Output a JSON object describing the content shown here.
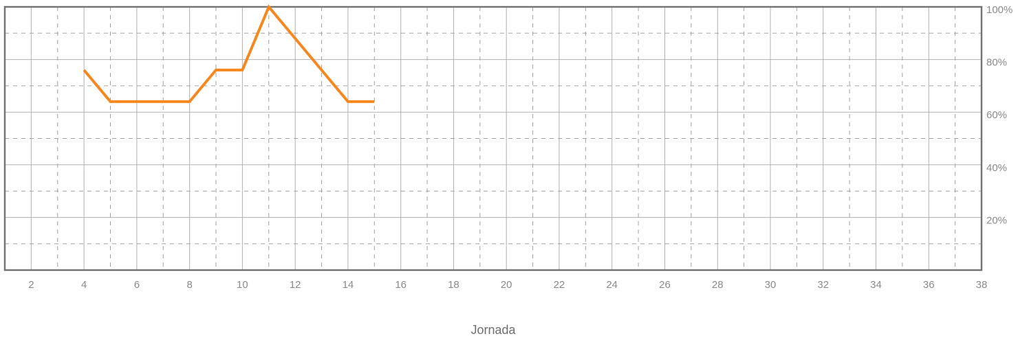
{
  "chart_data": {
    "type": "line",
    "xlabel": "Jornada",
    "ylabel": "",
    "xlim": [
      1,
      38
    ],
    "ylim": [
      0,
      100
    ],
    "x_ticks": [
      2,
      4,
      6,
      8,
      10,
      12,
      14,
      16,
      18,
      20,
      22,
      24,
      26,
      28,
      30,
      32,
      34,
      36,
      38
    ],
    "y_ticks": [
      20,
      40,
      60,
      80,
      100
    ],
    "y_tick_labels": [
      "20%",
      "40%",
      "60%",
      "80%",
      "100%"
    ],
    "y_axis_position": "right",
    "grid": true,
    "series": [
      {
        "color": "#f7881f",
        "x": [
          4,
          5,
          6,
          7,
          8,
          9,
          10,
          11,
          12,
          13,
          14,
          15
        ],
        "values": [
          76,
          64,
          64,
          64,
          64,
          76,
          76,
          100,
          88,
          76,
          64,
          64
        ]
      }
    ]
  }
}
